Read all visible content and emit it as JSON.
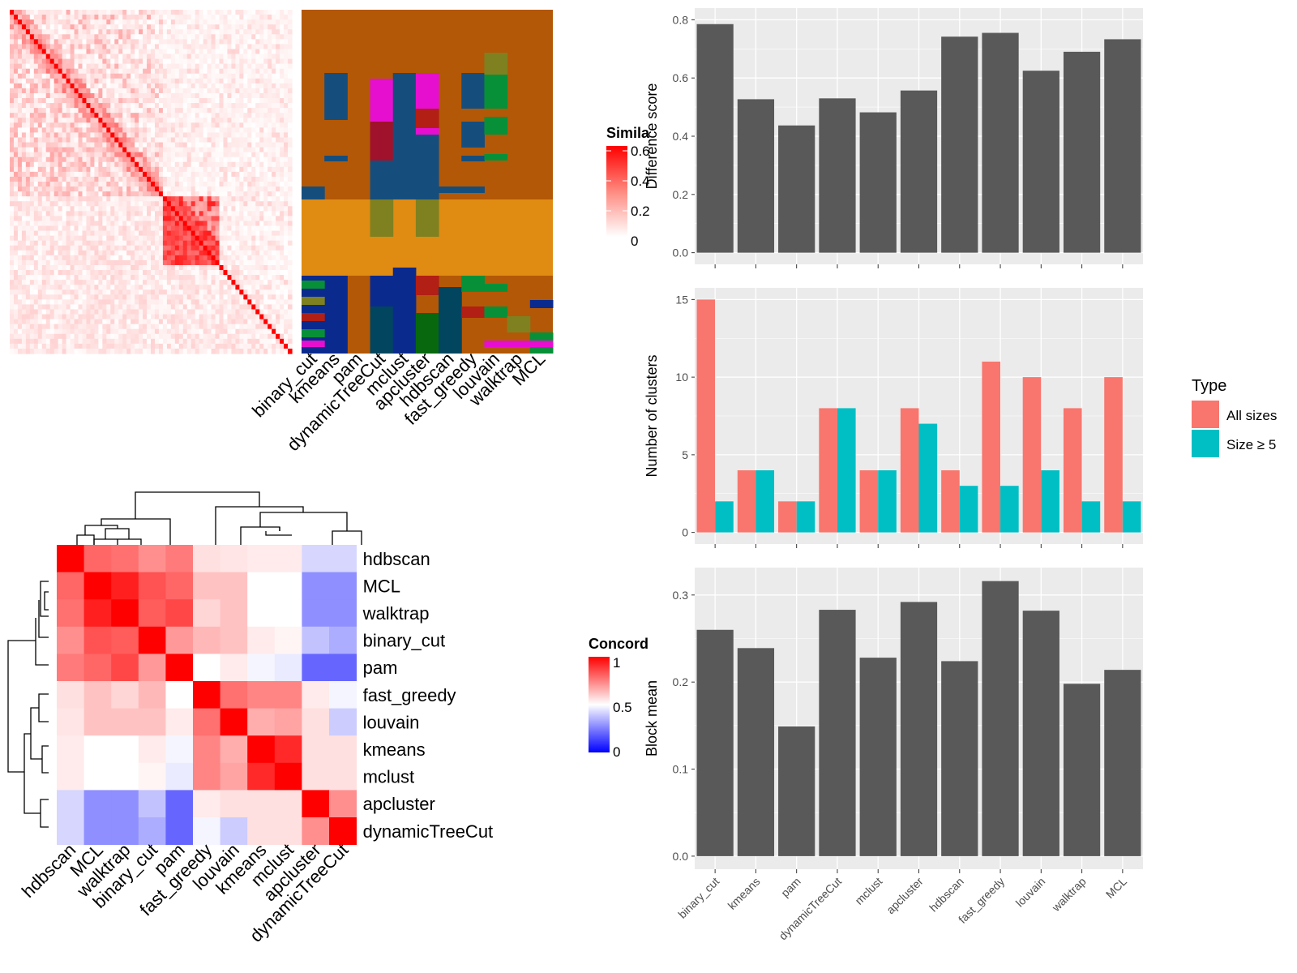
{
  "chart_data": [
    {
      "type": "heatmap",
      "panel": "similarity",
      "legend_title": "Simila",
      "legend_ticks": [
        "0.6",
        "0.4",
        "0.2",
        "0"
      ],
      "method_labels": [
        "binary_cut",
        "kmeans",
        "pam",
        "dynamicTreeCut",
        "mclust",
        "apcluster",
        "hdbscan",
        "fast_greedy",
        "louvain",
        "walktrap",
        "MCL"
      ],
      "legend_range": [
        0,
        0.6
      ]
    },
    {
      "type": "heatmap",
      "panel": "concordance",
      "legend_title": "Concord",
      "legend_ticks": [
        "1",
        "0.5",
        "0"
      ],
      "row_labels": [
        "hdbscan",
        "MCL",
        "walktrap",
        "binary_cut",
        "pam",
        "fast_greedy",
        "louvain",
        "kmeans",
        "mclust",
        "apcluster",
        "dynamicTreeCut"
      ],
      "col_labels": [
        "hdbscan",
        "MCL",
        "walktrap",
        "binary_cut",
        "pam",
        "fast_greedy",
        "louvain",
        "kmeans",
        "mclust",
        "apcluster",
        "dynamicTreeCut"
      ],
      "values": [
        [
          1.0,
          0.8,
          0.78,
          0.72,
          0.76,
          0.56,
          0.55,
          0.54,
          0.54,
          0.42,
          0.42
        ],
        [
          0.8,
          1.0,
          0.94,
          0.84,
          0.8,
          0.62,
          0.62,
          0.5,
          0.5,
          0.28,
          0.28
        ],
        [
          0.78,
          0.94,
          1.0,
          0.82,
          0.86,
          0.58,
          0.62,
          0.5,
          0.5,
          0.28,
          0.28
        ],
        [
          0.72,
          0.84,
          0.82,
          1.0,
          0.7,
          0.64,
          0.62,
          0.54,
          0.52,
          0.38,
          0.34
        ],
        [
          0.76,
          0.8,
          0.86,
          0.7,
          1.0,
          0.5,
          0.54,
          0.48,
          0.46,
          0.2,
          0.2
        ],
        [
          0.56,
          0.62,
          0.58,
          0.64,
          0.5,
          1.0,
          0.78,
          0.74,
          0.74,
          0.54,
          0.48
        ],
        [
          0.55,
          0.62,
          0.62,
          0.62,
          0.54,
          0.78,
          1.0,
          0.66,
          0.68,
          0.56,
          0.4
        ],
        [
          0.54,
          0.5,
          0.5,
          0.54,
          0.48,
          0.74,
          0.66,
          1.0,
          0.92,
          0.56,
          0.56
        ],
        [
          0.54,
          0.5,
          0.5,
          0.52,
          0.46,
          0.74,
          0.68,
          0.92,
          1.0,
          0.56,
          0.56
        ],
        [
          0.42,
          0.28,
          0.28,
          0.38,
          0.2,
          0.54,
          0.56,
          0.56,
          0.56,
          1.0,
          0.72
        ],
        [
          0.42,
          0.28,
          0.28,
          0.34,
          0.2,
          0.48,
          0.4,
          0.56,
          0.56,
          0.72,
          1.0
        ]
      ],
      "legend_range": [
        0,
        1
      ]
    },
    {
      "type": "bar",
      "panel": "difference",
      "categories": [
        "binary_cut",
        "kmeans",
        "pam",
        "dynamicTreeCut",
        "mclust",
        "apcluster",
        "hdbscan",
        "fast_greedy",
        "louvain",
        "walktrap",
        "MCL"
      ],
      "values": [
        0.785,
        0.527,
        0.437,
        0.53,
        0.482,
        0.557,
        0.742,
        0.755,
        0.625,
        0.69,
        0.733
      ],
      "ylabel": "Difference score",
      "ylim": [
        0,
        0.8
      ],
      "yticks": [
        "0.0",
        "0.2",
        "0.4",
        "0.6",
        "0.8"
      ],
      "grid": true
    },
    {
      "type": "bar",
      "panel": "clusters",
      "categories": [
        "binary_cut",
        "kmeans",
        "pam",
        "dynamicTreeCut",
        "mclust",
        "apcluster",
        "hdbscan",
        "fast_greedy",
        "louvain",
        "walktrap",
        "MCL"
      ],
      "series": [
        {
          "name": "All sizes",
          "color": "#F8766D",
          "values": [
            15,
            4,
            2,
            8,
            4,
            8,
            4,
            11,
            10,
            8,
            10
          ]
        },
        {
          "name": "Size ≥ 5",
          "color": "#00BFC4",
          "values": [
            2,
            4,
            2,
            8,
            4,
            7,
            3,
            3,
            4,
            2,
            2
          ]
        }
      ],
      "ylabel": "Number of clusters",
      "ylim": [
        0,
        15
      ],
      "yticks": [
        "0",
        "5",
        "10",
        "15"
      ],
      "legend_title": "Type",
      "legend_position": "right",
      "grid": true
    },
    {
      "type": "bar",
      "panel": "blockmean",
      "categories": [
        "binary_cut",
        "kmeans",
        "pam",
        "dynamicTreeCut",
        "mclust",
        "apcluster",
        "hdbscan",
        "fast_greedy",
        "louvain",
        "walktrap",
        "MCL"
      ],
      "values": [
        0.26,
        0.239,
        0.149,
        0.283,
        0.228,
        0.292,
        0.224,
        0.316,
        0.282,
        0.198,
        0.214
      ],
      "ylabel": "Block mean",
      "ylim": [
        0,
        0.3
      ],
      "yticks": [
        "0.0",
        "0.1",
        "0.2",
        "0.3"
      ],
      "grid": true
    }
  ]
}
